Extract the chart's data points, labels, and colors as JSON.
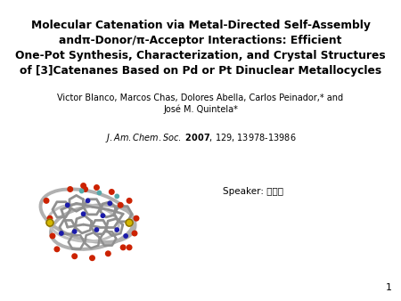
{
  "title_line1": "Molecular Catenation via Metal-Directed Self-Assembly",
  "title_line2": "andπ-Donor/π-Acceptor Interactions: Efficient",
  "title_line3": "One-Pot Synthesis, Characterization, and Crystal Structures",
  "title_line4": "of [3]Catenanes Based on Pd or Pt Dinuclear Metallocycles",
  "authors_line1": "Victor Blanco, Marcos Chas, Dolores Abella, Carlos Peinador,* and",
  "authors_line2": "José M. Quintela*",
  "speaker_label": "Speaker: ",
  "speaker_name": "黄仁鼴",
  "slide_number": "1",
  "bg_color": "#ffffff",
  "text_color": "#000000",
  "title_fontsize": 8.8,
  "authors_fontsize": 7.0,
  "journal_fontsize": 7.0,
  "speaker_fontsize": 7.5
}
